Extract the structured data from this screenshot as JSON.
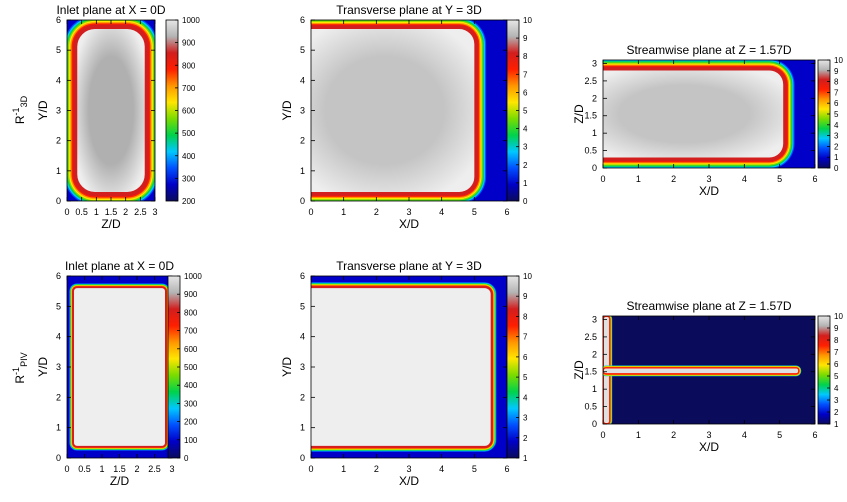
{
  "figure": {
    "row_labels": [
      {
        "base": "R",
        "sup": "-1",
        "sub": "3D"
      },
      {
        "base": "R",
        "sup": "-1",
        "sub": "PIV"
      }
    ]
  },
  "colormaps": {
    "rainbow": [
      "#0b0b5c",
      "#0000c8",
      "#0050ff",
      "#00c8ff",
      "#00d24b",
      "#7adc00",
      "#ffe600",
      "#ff9600",
      "#ff1e00",
      "#d21e1e",
      "#b4b4b4",
      "#e6e6e6"
    ]
  },
  "chart_data": [
    {
      "type": "heatmap",
      "id": "inlet_3d",
      "title": "Inlet plane at X = 0D",
      "xlabel": "Z/D",
      "ylabel": "Y/D",
      "xlim": [
        0,
        3
      ],
      "ylim": [
        0,
        6
      ],
      "xticks": [
        "0",
        "0.5",
        "1",
        "1.5",
        "2",
        "2.5",
        "3"
      ],
      "yticks": [
        "0",
        "1",
        "2",
        "3",
        "4",
        "5",
        "6"
      ],
      "colorbar": {
        "min": 200,
        "max": 1000,
        "ticks": [
          "200",
          "300",
          "400",
          "500",
          "600",
          "700",
          "800",
          "900",
          "1000"
        ]
      },
      "field": {
        "shape": "rounded_rect",
        "x0": 0.35,
        "x1": 2.65,
        "y0": 0.3,
        "y1": 5.7,
        "corner_radius": 0.6,
        "wall_band": 0.35,
        "core_color": "#b0b0b0",
        "edge_color": "#eeeeee"
      }
    },
    {
      "type": "heatmap",
      "id": "transverse_3d",
      "title": "Transverse plane at Y = 3D",
      "xlabel": "X/D",
      "ylabel": "Y/D",
      "xlim": [
        0,
        6
      ],
      "ylim": [
        0,
        6
      ],
      "xticks": [
        "0",
        "1",
        "2",
        "3",
        "4",
        "5",
        "6"
      ],
      "yticks": [
        "0",
        "1",
        "2",
        "3",
        "4",
        "5",
        "6"
      ],
      "colorbar": {
        "min": 0,
        "max": 10,
        "ticks": [
          "0",
          "1",
          "2",
          "3",
          "4",
          "5",
          "6",
          "7",
          "8",
          "9",
          "10"
        ]
      },
      "field": {
        "shape": "rounded_rect",
        "x0": -0.5,
        "x1": 5.0,
        "y0": 0.3,
        "y1": 5.7,
        "corner_radius": 0.5,
        "wall_band": 0.3,
        "core_color": "#c4c4c4",
        "edge_color": "#eeeeee"
      }
    },
    {
      "type": "heatmap",
      "id": "streamwise_3d",
      "title": "Streamwise plane at Z = 1.57D",
      "xlabel": "X/D",
      "ylabel": "Z/D",
      "xlim": [
        0,
        6
      ],
      "ylim": [
        0,
        3.1
      ],
      "xticks": [
        "0",
        "1",
        "2",
        "3",
        "4",
        "5",
        "6"
      ],
      "yticks": [
        "0",
        "0.5",
        "1",
        "1.5",
        "2",
        "2.5",
        "3"
      ],
      "colorbar": {
        "min": 0,
        "max": 10,
        "ticks": [
          "0",
          "1",
          "2",
          "3",
          "4",
          "5",
          "6",
          "7",
          "8",
          "9",
          "10"
        ]
      },
      "field": {
        "shape": "rounded_rect",
        "x0": -0.5,
        "x1": 5.1,
        "y0": 0.3,
        "y1": 2.8,
        "corner_radius": 0.4,
        "wall_band": 0.25,
        "core_color": "#c4c4c4",
        "edge_color": "#eeeeee"
      }
    },
    {
      "type": "heatmap",
      "id": "inlet_piv",
      "title": "Inlet plane at X = 0D",
      "xlabel": "Z/D",
      "ylabel": "Y/D",
      "xlim": [
        0,
        3
      ],
      "ylim": [
        0,
        6
      ],
      "xticks": [
        "0",
        "0.5",
        "1",
        "1.5",
        "2",
        "2.5",
        "3"
      ],
      "yticks": [
        "0",
        "1",
        "2",
        "3",
        "4",
        "5",
        "6"
      ],
      "colorbar": {
        "min": 0,
        "max": 1000,
        "ticks": [
          "0",
          "100",
          "200",
          "300",
          "400",
          "500",
          "600",
          "700",
          "800",
          "900",
          "1000"
        ]
      },
      "field": {
        "shape": "rounded_rect",
        "x0": 0.2,
        "x1": 2.8,
        "y0": 0.4,
        "y1": 5.6,
        "corner_radius": 0.1,
        "wall_band": 0.12,
        "core_color": "#eeeeee",
        "edge_color": "#eeeeee"
      }
    },
    {
      "type": "heatmap",
      "id": "transverse_piv",
      "title": "Transverse plane at Y = 3D",
      "xlabel": "X/D",
      "ylabel": "Y/D",
      "xlim": [
        0,
        6
      ],
      "ylim": [
        0,
        6
      ],
      "xticks": [
        "0",
        "1",
        "2",
        "3",
        "4",
        "5",
        "6"
      ],
      "yticks": [
        "0",
        "1",
        "2",
        "3",
        "4",
        "5",
        "6"
      ],
      "colorbar": {
        "min": 1,
        "max": 10,
        "ticks": [
          "1",
          "2",
          "3",
          "4",
          "5",
          "6",
          "7",
          "8",
          "9",
          "10"
        ]
      },
      "field": {
        "shape": "rounded_rect",
        "x0": -0.5,
        "x1": 5.5,
        "y0": 0.4,
        "y1": 5.6,
        "corner_radius": 0.2,
        "wall_band": 0.15,
        "core_color": "#eeeeee",
        "edge_color": "#eeeeee"
      }
    },
    {
      "type": "heatmap",
      "id": "streamwise_piv",
      "title": "Streamwise plane at Z = 1.57D",
      "xlabel": "X/D",
      "ylabel": "Z/D",
      "xlim": [
        0,
        6
      ],
      "ylim": [
        0,
        3.1
      ],
      "xticks": [
        "0",
        "1",
        "2",
        "3",
        "4",
        "5",
        "6"
      ],
      "yticks": [
        "0",
        "0.5",
        "1",
        "1.5",
        "2",
        "2.5",
        "3"
      ],
      "colorbar": {
        "min": 1,
        "max": 10,
        "ticks": [
          "1",
          "2",
          "3",
          "4",
          "5",
          "6",
          "7",
          "8",
          "9",
          "10"
        ]
      },
      "field": {
        "shape": "t_channel",
        "background": "#0b0b5c",
        "vertical_arm": {
          "x0": 0.0,
          "x1": 0.2,
          "y0": 0.0,
          "y1": 3.1
        },
        "horizontal_arm": {
          "x0": 0.0,
          "x1": 5.55,
          "y0": 1.43,
          "y1": 1.62
        },
        "wall_band": 0.06,
        "core_color": "#e0e0e0"
      }
    }
  ]
}
